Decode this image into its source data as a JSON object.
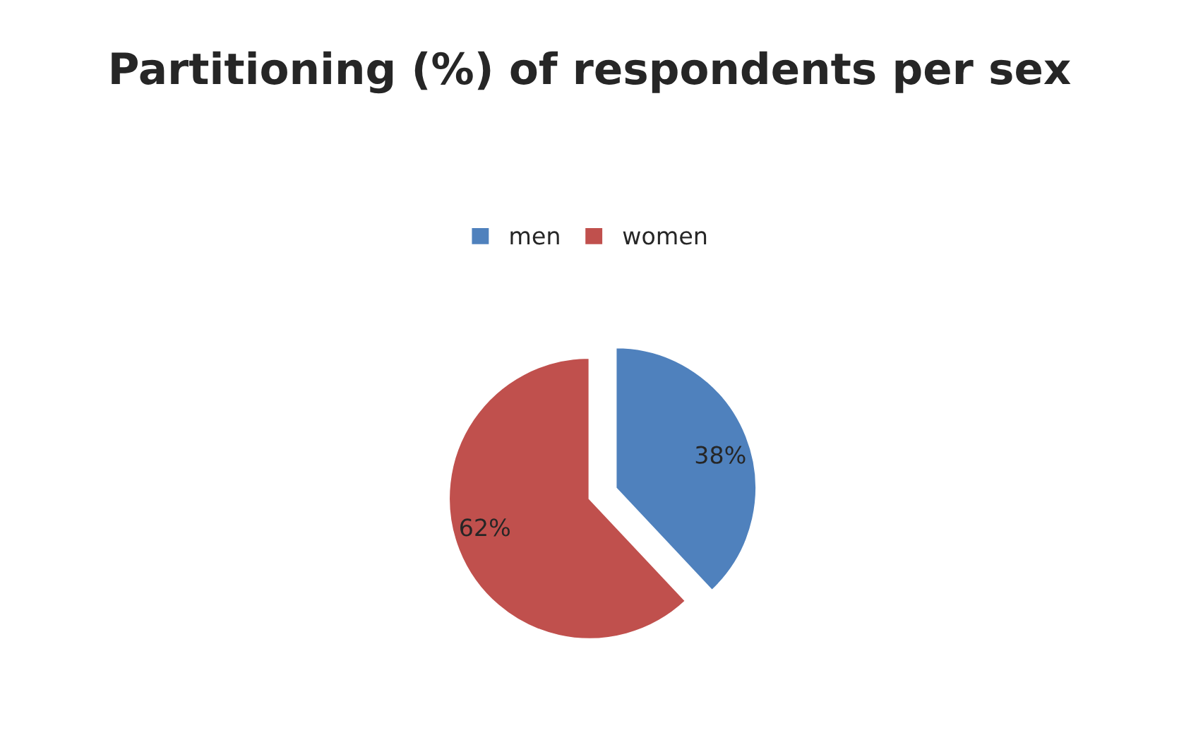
{
  "chart_data": {
    "type": "pie",
    "title": "Partitioning (%) of respondents per sex",
    "categories": [
      "men",
      "women"
    ],
    "values": [
      38,
      62
    ],
    "colors": [
      "#4f81bd",
      "#c0504d"
    ],
    "value_labels": [
      "38%",
      "62%"
    ],
    "legend": "top"
  }
}
